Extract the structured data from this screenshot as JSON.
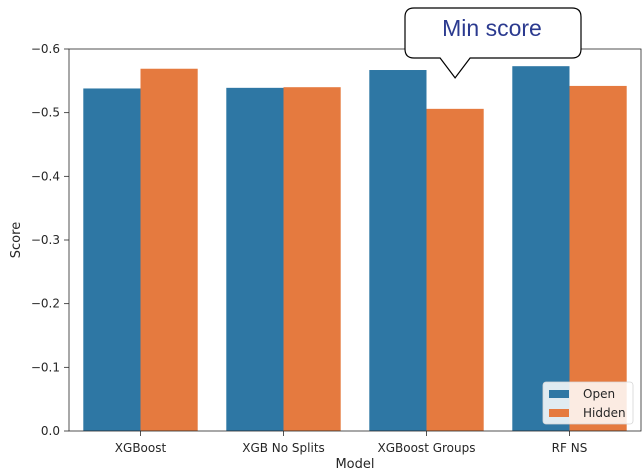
{
  "chart_data": {
    "type": "bar",
    "xlabel": "Model",
    "ylabel": "Score",
    "categories": [
      "XGBoost",
      "XGB No Splits",
      "XGBoost Groups",
      "RF NS"
    ],
    "series": [
      {
        "name": "Open",
        "color": "#2e77a4",
        "values": [
          -0.538,
          -0.539,
          -0.567,
          -0.573
        ]
      },
      {
        "name": "Hidden",
        "color": "#e57a3f",
        "values": [
          -0.569,
          -0.54,
          -0.506,
          -0.542
        ]
      }
    ],
    "ylim": [
      0.0,
      -0.6
    ],
    "yticks": [
      {
        "value": 0.0,
        "label": "0.0"
      },
      {
        "value": -0.1,
        "label": "−0.1"
      },
      {
        "value": -0.2,
        "label": "−0.2"
      },
      {
        "value": -0.3,
        "label": "−0.3"
      },
      {
        "value": -0.4,
        "label": "−0.4"
      },
      {
        "value": -0.5,
        "label": "−0.5"
      },
      {
        "value": -0.6,
        "label": "−0.6"
      }
    ],
    "grid": false,
    "legend_position": "bottom-right",
    "annotation": {
      "text": "Min score",
      "target_category": "XGBoost Groups",
      "target_series": "Hidden"
    }
  }
}
